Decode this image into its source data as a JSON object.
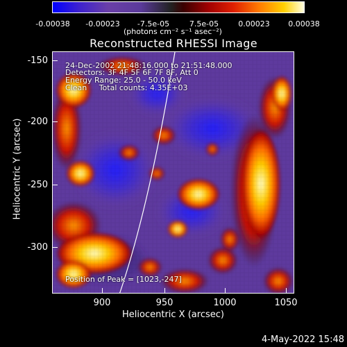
{
  "colorbar": {
    "ticks": [
      "-0.00038",
      "-0.00023",
      "-7.5e-05",
      "7.5e-05",
      "0.00023",
      "0.00038"
    ],
    "unit": "(photons cm⁻² s⁻¹ asec⁻²)"
  },
  "title": "Reconstructed RHESSI Image",
  "annotations": {
    "line1": "24-Dec-2002 21:48:16.000 to 21:51:48.000",
    "line2": "Detectors: 3F 4F 5F 6F 7F 8F, Att 0",
    "line3": "Energy Range: 25.0 - 50.0 keV",
    "line4": "Clean     Total counts: 4.35E+03",
    "peak": "Position of Peak = [1023,-247]"
  },
  "axes": {
    "xlabel": "Heliocentric X (arcsec)",
    "ylabel": "Heliocentric Y (arcsec)",
    "xticks": [
      "900",
      "950",
      "1000",
      "1050"
    ],
    "yticks": [
      "-150",
      "-200",
      "-250",
      "-300"
    ]
  },
  "footer_date": "4-May-2022 15:48"
}
